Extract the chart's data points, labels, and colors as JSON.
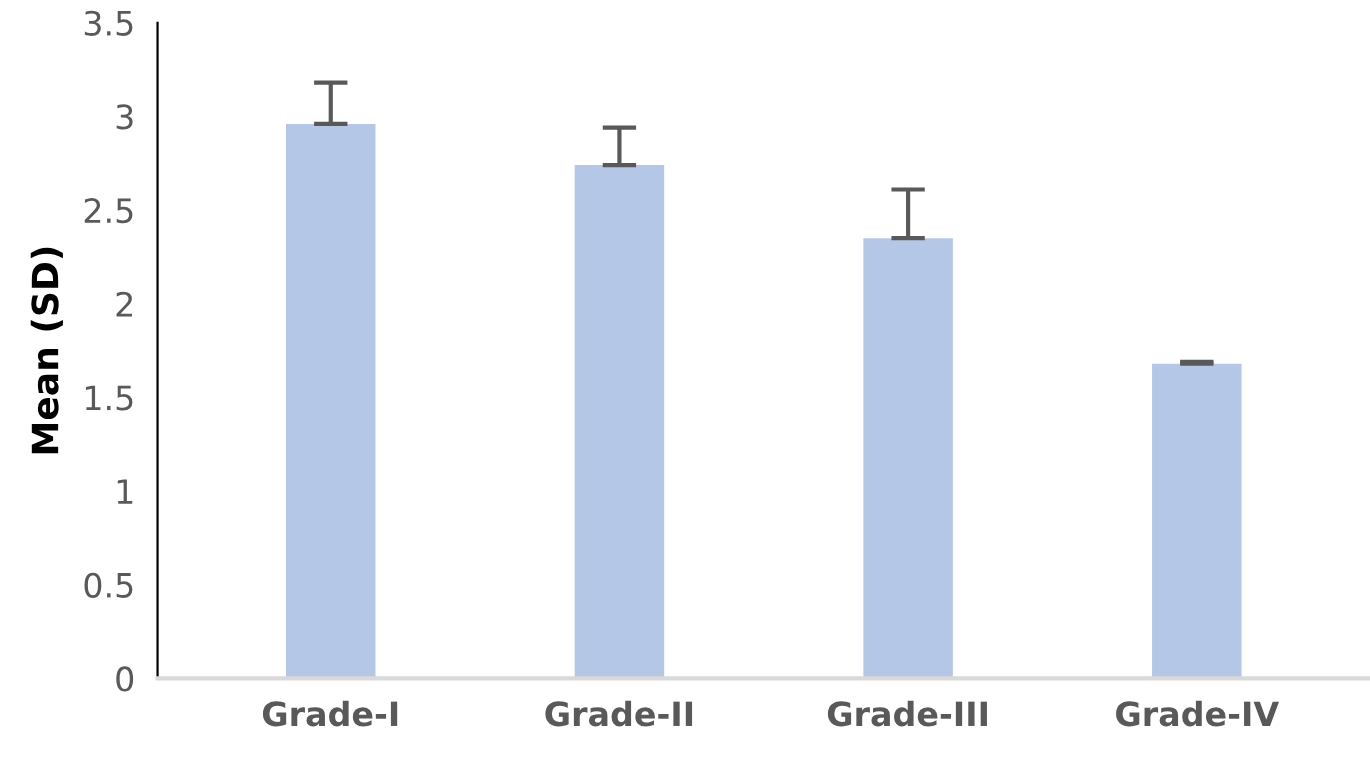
{
  "chart_data": {
    "type": "bar",
    "ylabel": "Mean (SD)",
    "categories": [
      "Grade-I",
      "Grade-II",
      "Grade-III",
      "Grade-IV"
    ],
    "values": [
      2.96,
      2.74,
      2.35,
      1.68
    ],
    "errors": [
      [
        2.96,
        3.18
      ],
      [
        2.74,
        2.94
      ],
      [
        2.35,
        2.61
      ],
      [
        1.68,
        1.69
      ]
    ],
    "color": "#b4c7e7",
    "ylim": [
      0,
      3.5
    ],
    "yticks": [
      0,
      0.5,
      1,
      1.5,
      2,
      2.5,
      3,
      3.5
    ],
    "grid": false,
    "legend": false
  }
}
